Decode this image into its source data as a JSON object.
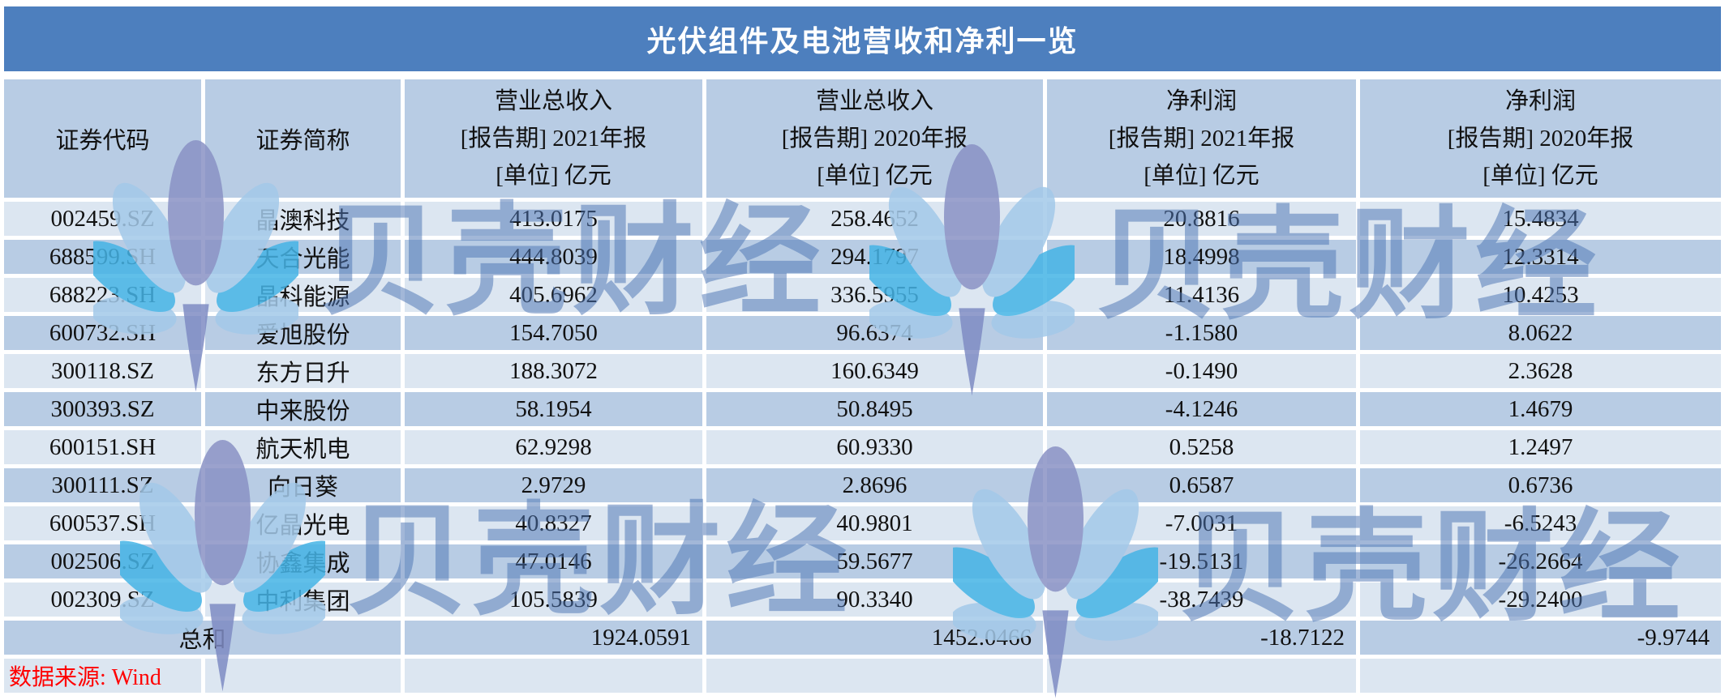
{
  "title": "光伏组件及电池营收和净利一览",
  "watermark": {
    "text": "贝壳财经",
    "logo": "beike-fan-logo"
  },
  "source": "数据来源: Wind",
  "columns": [
    {
      "label": "证券代码"
    },
    {
      "label": "证券简称"
    },
    {
      "line1": "营业总收入",
      "line2": "[报告期] 2021年报",
      "line3": "[单位] 亿元"
    },
    {
      "line1": "营业总收入",
      "line2": "[报告期] 2020年报",
      "line3": "[单位] 亿元"
    },
    {
      "line1": "净利润",
      "line2": "[报告期] 2021年报",
      "line3": "[单位] 亿元"
    },
    {
      "line1": "净利润",
      "line2": "[报告期] 2020年报",
      "line3": "[单位] 亿元"
    }
  ],
  "rows": [
    [
      "002459.SZ",
      "晶澳科技",
      "413.0175",
      "258.4652",
      "20.8816",
      "15.4834"
    ],
    [
      "688599.SH",
      "天合光能",
      "444.8039",
      "294.1797",
      "18.4998",
      "12.3314"
    ],
    [
      "688223.SH",
      "晶科能源",
      "405.6962",
      "336.5955",
      "11.4136",
      "10.4253"
    ],
    [
      "600732.SH",
      "爱旭股份",
      "154.7050",
      "96.6374",
      "-1.1580",
      "8.0622"
    ],
    [
      "300118.SZ",
      "东方日升",
      "188.3072",
      "160.6349",
      "-0.1490",
      "2.3628"
    ],
    [
      "300393.SZ",
      "中来股份",
      "58.1954",
      "50.8495",
      "-4.1246",
      "1.4679"
    ],
    [
      "600151.SH",
      "航天机电",
      "62.9298",
      "60.9330",
      "0.5258",
      "1.2497"
    ],
    [
      "300111.SZ",
      "向日葵",
      "2.9729",
      "2.8696",
      "0.6587",
      "0.6736"
    ],
    [
      "600537.SH",
      "亿晶光电",
      "40.8327",
      "40.9801",
      "-7.0031",
      "-6.5243"
    ],
    [
      "002506.SZ",
      "协鑫集成",
      "47.0146",
      "59.5677",
      "-19.5131",
      "-26.2664"
    ],
    [
      "002309.SZ",
      "中利集团",
      "105.5839",
      "90.3340",
      "-38.7439",
      "-29.2400"
    ]
  ],
  "total": {
    "label": "总和",
    "values": [
      "1924.0591",
      "1452.0466",
      "-18.7122",
      "-9.9744"
    ]
  },
  "colors": {
    "title_bar": "#4d7fbe",
    "row_light": "#dce6f1",
    "row_medium": "#b8cce4",
    "header_bg": "#b8cce4",
    "source_text": "#ff0000",
    "watermark_text": "rgba(77,117,180,0.52)",
    "logo_purple": "#8a92c5",
    "logo_lightblue": "#a3c9e9",
    "logo_skyblue": "#45b4e6"
  }
}
